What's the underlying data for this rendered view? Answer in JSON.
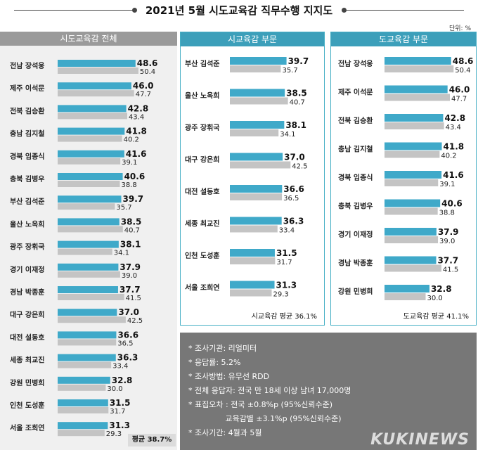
{
  "title": "2021년 5월 시도교육감 직무수행 지지도",
  "unit": "단위: %",
  "colors": {
    "current": "#3fa9c9",
    "previous": "#c4c4c4"
  },
  "chart_data": [
    {
      "type": "bar",
      "title": "시도교육감 전체",
      "categories": [
        "전남 장석웅",
        "제주 이석문",
        "전북 김승환",
        "충남 김지철",
        "경북 임종식",
        "충북 김병우",
        "부산 김석준",
        "울산 노옥희",
        "광주 장휘국",
        "경기 이재정",
        "경남 박종훈",
        "대구 강은희",
        "대전 설동호",
        "세종 최교진",
        "강원 민병희",
        "인천 도성훈",
        "서울 조희연"
      ],
      "series": [
        {
          "values": [
            48.6,
            46.0,
            42.8,
            41.8,
            41.6,
            40.6,
            39.7,
            38.5,
            38.1,
            37.9,
            37.7,
            37.0,
            36.6,
            36.3,
            32.8,
            31.5,
            31.3
          ]
        },
        {
          "values": [
            50.4,
            47.7,
            43.4,
            40.2,
            39.1,
            38.8,
            35.7,
            40.7,
            34.1,
            39.0,
            41.5,
            42.5,
            36.5,
            33.4,
            30.0,
            31.7,
            29.3
          ]
        }
      ],
      "average": "평균 38.7%"
    },
    {
      "type": "bar",
      "title": "시교육감 부문",
      "categories": [
        "부산 김석준",
        "울산 노옥희",
        "광주 장휘국",
        "대구 강은희",
        "대전 설동호",
        "세종 최교진",
        "인천 도성훈",
        "서울 조희연"
      ],
      "series": [
        {
          "values": [
            39.7,
            38.5,
            38.1,
            37.0,
            36.6,
            36.3,
            31.5,
            31.3
          ]
        },
        {
          "values": [
            35.7,
            40.7,
            34.1,
            42.5,
            36.5,
            33.4,
            31.7,
            29.3
          ]
        }
      ],
      "average": "시교육감 평균 36.1%"
    },
    {
      "type": "bar",
      "title": "도교육감 부문",
      "categories": [
        "전남 장석웅",
        "제주 이석문",
        "전북 김승환",
        "충남 김지철",
        "경북 임종식",
        "충북 김병우",
        "경기 이재정",
        "경남 박종훈",
        "강원 민병희"
      ],
      "series": [
        {
          "values": [
            48.6,
            46.0,
            42.8,
            41.8,
            41.6,
            40.6,
            37.9,
            37.7,
            32.8
          ]
        },
        {
          "values": [
            50.4,
            47.7,
            43.4,
            40.2,
            39.1,
            38.8,
            39.0,
            41.5,
            30.0
          ]
        }
      ],
      "average": "도교육감 평균 41.1%"
    }
  ],
  "notes": [
    "* 조사기관: 리얼미터",
    "* 응답률: 5.2%",
    "* 조사방법: 유무선 RDD",
    "* 전체 응답자: 전국 만 18세 이상 남녀 17,000명",
    "* 표집오차 : 전국 ±0.8%p (95%신뢰수준)",
    "               교육감별 ±3.1%p (95%신뢰수준)",
    "* 조사기간: 4월과 5월"
  ],
  "watermark": "KUKINEWS"
}
